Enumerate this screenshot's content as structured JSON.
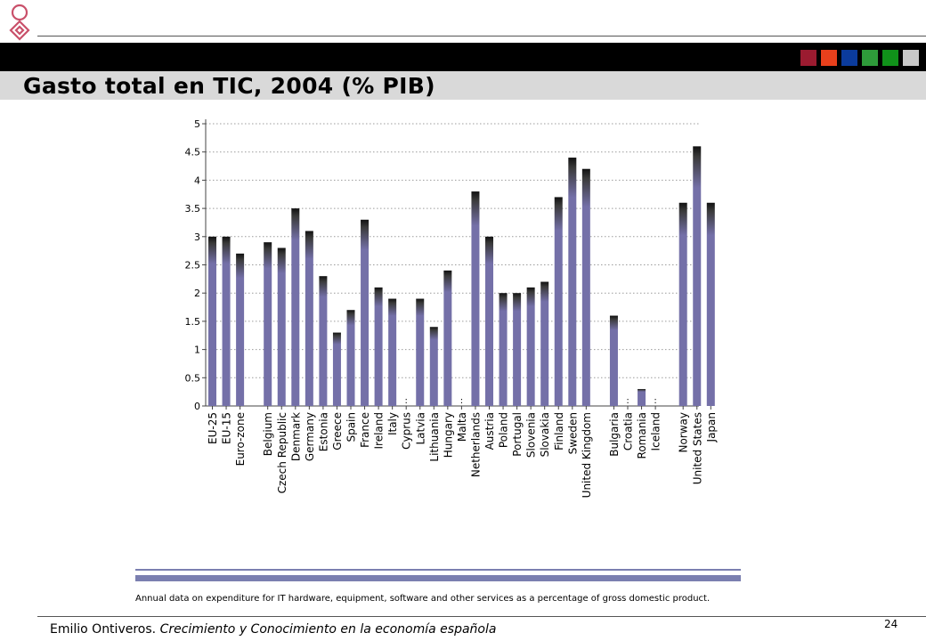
{
  "header": {
    "title": "Gasto total en TIC, 2004 (% PIB)",
    "squares": [
      "#9b1b30",
      "#e8401c",
      "#0b3b9c",
      "#2e9b3a",
      "#10911a",
      "#c8c8c8"
    ]
  },
  "chart_data": {
    "type": "bar",
    "title": "",
    "xlabel": "",
    "ylabel": "",
    "ylim": [
      0,
      5
    ],
    "yticks": [
      "0",
      "0.5",
      "1",
      "1.5",
      "2",
      "2.5",
      "3",
      "3.5",
      "4",
      "4.5",
      "5"
    ],
    "grid": true,
    "bar_color": "#7470a8",
    "categories": [
      "EU-25",
      "EU-15",
      "Euro-zone",
      "Belgium",
      "Czech Republic",
      "Denmark",
      "Germany",
      "Estonia",
      "Greece",
      "Spain",
      "France",
      "Ireland",
      "Italy",
      "Cyprus",
      "Latvia",
      "Lithuania",
      "Hungary",
      "Malta",
      "Netherlands",
      "Austria",
      "Poland",
      "Portugal",
      "Slovenia",
      "Slovakia",
      "Finland",
      "Sweden",
      "United Kingdom",
      "Bulgaria",
      "Croatia",
      "Romania",
      "Iceland",
      "Norway",
      "United States",
      "Japan"
    ],
    "values": [
      3.0,
      3.0,
      2.7,
      2.9,
      2.8,
      3.5,
      3.1,
      2.3,
      1.3,
      1.7,
      3.3,
      2.1,
      1.9,
      null,
      1.9,
      1.4,
      2.4,
      null,
      3.8,
      3.0,
      2.0,
      2.0,
      2.1,
      2.2,
      3.7,
      4.4,
      4.2,
      1.6,
      null,
      0.3,
      null,
      3.6,
      4.6,
      3.6
    ],
    "missing_marker": ":"
  },
  "caption": "Annual data on expenditure for IT hardware, equipment, software and other services as a percentage of gross domestic product.",
  "footer": {
    "author": "Emilio Ontiveros.",
    "work": "Crecimiento y Conocimiento en  la economía española",
    "page": "24"
  }
}
